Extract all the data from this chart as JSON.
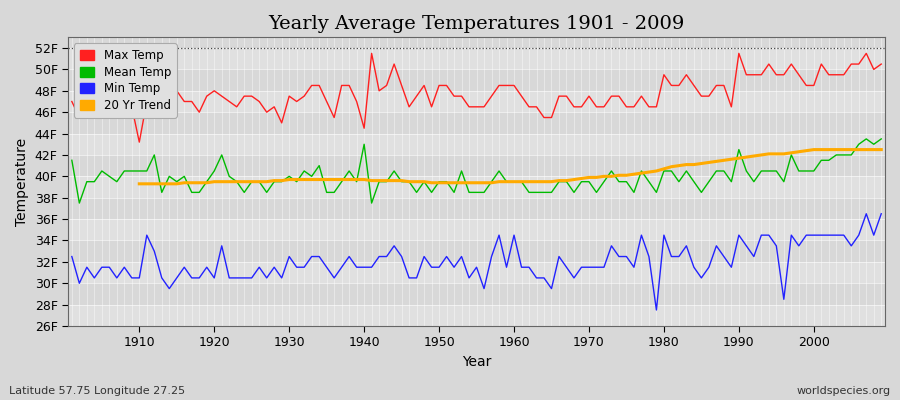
{
  "title": "Yearly Average Temperatures 1901 - 2009",
  "xlabel": "Year",
  "ylabel": "Temperature",
  "subtitle_left": "Latitude 57.75 Longitude 27.25",
  "subtitle_right": "worldspecies.org",
  "years": [
    1901,
    1902,
    1903,
    1904,
    1905,
    1906,
    1907,
    1908,
    1909,
    1910,
    1911,
    1912,
    1913,
    1914,
    1915,
    1916,
    1917,
    1918,
    1919,
    1920,
    1921,
    1922,
    1923,
    1924,
    1925,
    1926,
    1927,
    1928,
    1929,
    1930,
    1931,
    1932,
    1933,
    1934,
    1935,
    1936,
    1937,
    1938,
    1939,
    1940,
    1941,
    1942,
    1943,
    1944,
    1945,
    1946,
    1947,
    1948,
    1949,
    1950,
    1951,
    1952,
    1953,
    1954,
    1955,
    1956,
    1957,
    1958,
    1959,
    1960,
    1961,
    1962,
    1963,
    1964,
    1965,
    1966,
    1967,
    1968,
    1969,
    1970,
    1971,
    1972,
    1973,
    1974,
    1975,
    1976,
    1977,
    1978,
    1979,
    1980,
    1981,
    1982,
    1983,
    1984,
    1985,
    1986,
    1987,
    1988,
    1989,
    1990,
    1991,
    1992,
    1993,
    1994,
    1995,
    1996,
    1997,
    1998,
    1999,
    2000,
    2001,
    2002,
    2003,
    2004,
    2005,
    2006,
    2007,
    2008,
    2009
  ],
  "max_temp": [
    47.0,
    45.5,
    47.0,
    46.5,
    47.5,
    47.0,
    46.5,
    47.5,
    46.5,
    43.2,
    47.0,
    47.5,
    47.5,
    49.0,
    48.0,
    47.0,
    47.0,
    46.0,
    47.5,
    48.0,
    47.5,
    47.0,
    46.5,
    47.5,
    47.5,
    47.0,
    46.0,
    46.5,
    45.0,
    47.5,
    47.0,
    47.5,
    48.5,
    48.5,
    47.0,
    45.5,
    48.5,
    48.5,
    47.0,
    44.5,
    51.5,
    48.0,
    48.5,
    50.5,
    48.5,
    46.5,
    47.5,
    48.5,
    46.5,
    48.5,
    48.5,
    47.5,
    47.5,
    46.5,
    46.5,
    46.5,
    47.5,
    48.5,
    48.5,
    48.5,
    47.5,
    46.5,
    46.5,
    45.5,
    45.5,
    47.5,
    47.5,
    46.5,
    46.5,
    47.5,
    46.5,
    46.5,
    47.5,
    47.5,
    46.5,
    46.5,
    47.5,
    46.5,
    46.5,
    49.5,
    48.5,
    48.5,
    49.5,
    48.5,
    47.5,
    47.5,
    48.5,
    48.5,
    46.5,
    51.5,
    49.5,
    49.5,
    49.5,
    50.5,
    49.5,
    49.5,
    50.5,
    49.5,
    48.5,
    48.5,
    50.5,
    49.5,
    49.5,
    49.5,
    50.5,
    50.5,
    51.5,
    50.0,
    50.5
  ],
  "mean_temp": [
    41.5,
    37.5,
    39.5,
    39.5,
    40.5,
    40.0,
    39.5,
    40.5,
    40.5,
    40.5,
    40.5,
    42.0,
    38.5,
    40.0,
    39.5,
    40.0,
    38.5,
    38.5,
    39.5,
    40.5,
    42.0,
    40.0,
    39.5,
    38.5,
    39.5,
    39.5,
    38.5,
    39.5,
    39.5,
    40.0,
    39.5,
    40.5,
    40.0,
    41.0,
    38.5,
    38.5,
    39.5,
    40.5,
    39.5,
    43.0,
    37.5,
    39.5,
    39.5,
    40.5,
    39.5,
    39.5,
    38.5,
    39.5,
    38.5,
    39.5,
    39.5,
    38.5,
    40.5,
    38.5,
    38.5,
    38.5,
    39.5,
    40.5,
    39.5,
    39.5,
    39.5,
    38.5,
    38.5,
    38.5,
    38.5,
    39.5,
    39.5,
    38.5,
    39.5,
    39.5,
    38.5,
    39.5,
    40.5,
    39.5,
    39.5,
    38.5,
    40.5,
    39.5,
    38.5,
    40.5,
    40.5,
    39.5,
    40.5,
    39.5,
    38.5,
    39.5,
    40.5,
    40.5,
    39.5,
    42.5,
    40.5,
    39.5,
    40.5,
    40.5,
    40.5,
    39.5,
    42.0,
    40.5,
    40.5,
    40.5,
    41.5,
    41.5,
    42.0,
    42.0,
    42.0,
    43.0,
    43.5,
    43.0,
    43.5
  ],
  "min_temp": [
    32.5,
    30.0,
    31.5,
    30.5,
    31.5,
    31.5,
    30.5,
    31.5,
    30.5,
    30.5,
    34.5,
    33.0,
    30.5,
    29.5,
    30.5,
    31.5,
    30.5,
    30.5,
    31.5,
    30.5,
    33.5,
    30.5,
    30.5,
    30.5,
    30.5,
    31.5,
    30.5,
    31.5,
    30.5,
    32.5,
    31.5,
    31.5,
    32.5,
    32.5,
    31.5,
    30.5,
    31.5,
    32.5,
    31.5,
    31.5,
    31.5,
    32.5,
    32.5,
    33.5,
    32.5,
    30.5,
    30.5,
    32.5,
    31.5,
    31.5,
    32.5,
    31.5,
    32.5,
    30.5,
    31.5,
    29.5,
    32.5,
    34.5,
    31.5,
    34.5,
    31.5,
    31.5,
    30.5,
    30.5,
    29.5,
    32.5,
    31.5,
    30.5,
    31.5,
    31.5,
    31.5,
    31.5,
    33.5,
    32.5,
    32.5,
    31.5,
    34.5,
    32.5,
    27.5,
    34.5,
    32.5,
    32.5,
    33.5,
    31.5,
    30.5,
    31.5,
    33.5,
    32.5,
    31.5,
    34.5,
    33.5,
    32.5,
    34.5,
    34.5,
    33.5,
    28.5,
    34.5,
    33.5,
    34.5,
    34.5,
    34.5,
    34.5,
    34.5,
    34.5,
    33.5,
    34.5,
    36.5,
    34.5,
    36.5
  ],
  "trend_years": [
    1910,
    1911,
    1912,
    1913,
    1914,
    1915,
    1916,
    1917,
    1918,
    1919,
    1920,
    1921,
    1922,
    1923,
    1924,
    1925,
    1926,
    1927,
    1928,
    1929,
    1930,
    1931,
    1932,
    1933,
    1934,
    1935,
    1936,
    1937,
    1938,
    1939,
    1940,
    1941,
    1942,
    1943,
    1944,
    1945,
    1946,
    1947,
    1948,
    1949,
    1950,
    1951,
    1952,
    1953,
    1954,
    1955,
    1956,
    1957,
    1958,
    1959,
    1960,
    1961,
    1962,
    1963,
    1964,
    1965,
    1966,
    1967,
    1968,
    1969,
    1970,
    1971,
    1972,
    1973,
    1974,
    1975,
    1976,
    1977,
    1978,
    1979,
    1980,
    1981,
    1982,
    1983,
    1984,
    1985,
    1986,
    1987,
    1988,
    1989,
    1990,
    1991,
    1992,
    1993,
    1994,
    1995,
    1996,
    1997,
    1998,
    1999,
    2000,
    2001,
    2002,
    2003,
    2004,
    2005,
    2006,
    2007,
    2008,
    2009
  ],
  "trend_vals": [
    39.3,
    39.3,
    39.3,
    39.3,
    39.3,
    39.3,
    39.4,
    39.4,
    39.4,
    39.4,
    39.5,
    39.5,
    39.5,
    39.5,
    39.5,
    39.5,
    39.5,
    39.5,
    39.6,
    39.6,
    39.7,
    39.7,
    39.7,
    39.7,
    39.7,
    39.7,
    39.7,
    39.7,
    39.7,
    39.7,
    39.7,
    39.6,
    39.6,
    39.6,
    39.6,
    39.6,
    39.5,
    39.5,
    39.5,
    39.4,
    39.4,
    39.4,
    39.4,
    39.4,
    39.4,
    39.4,
    39.4,
    39.4,
    39.5,
    39.5,
    39.5,
    39.5,
    39.5,
    39.5,
    39.5,
    39.5,
    39.6,
    39.6,
    39.7,
    39.8,
    39.9,
    39.9,
    40.0,
    40.0,
    40.1,
    40.1,
    40.2,
    40.3,
    40.4,
    40.5,
    40.7,
    40.9,
    41.0,
    41.1,
    41.1,
    41.2,
    41.3,
    41.4,
    41.5,
    41.6,
    41.7,
    41.8,
    41.9,
    42.0,
    42.1,
    42.1,
    42.1,
    42.2,
    42.3,
    42.4,
    42.5,
    42.5,
    42.5,
    42.5,
    42.5,
    42.5,
    42.5,
    42.5,
    42.5,
    42.5
  ],
  "max_color": "#ff2020",
  "mean_color": "#00bb00",
  "min_color": "#2222ff",
  "trend_color": "#ffaa00",
  "plot_bg_color": "#d8d8d8",
  "fig_bg_color": "#d8d8d8",
  "grid_color": "#ffffff",
  "ylim": [
    26,
    53
  ],
  "yticks": [
    26,
    28,
    30,
    32,
    34,
    36,
    38,
    40,
    42,
    44,
    46,
    48,
    50,
    52
  ],
  "xticks": [
    1910,
    1920,
    1930,
    1940,
    1950,
    1960,
    1970,
    1980,
    1990,
    2000
  ],
  "dotted_line_y": 52,
  "legend_labels": [
    "Max Temp",
    "Mean Temp",
    "Min Temp",
    "20 Yr Trend"
  ],
  "legend_colors": [
    "#ff2020",
    "#00bb00",
    "#2222ff",
    "#ffaa00"
  ],
  "title_fontsize": 14,
  "tick_fontsize": 9,
  "label_fontsize": 10
}
